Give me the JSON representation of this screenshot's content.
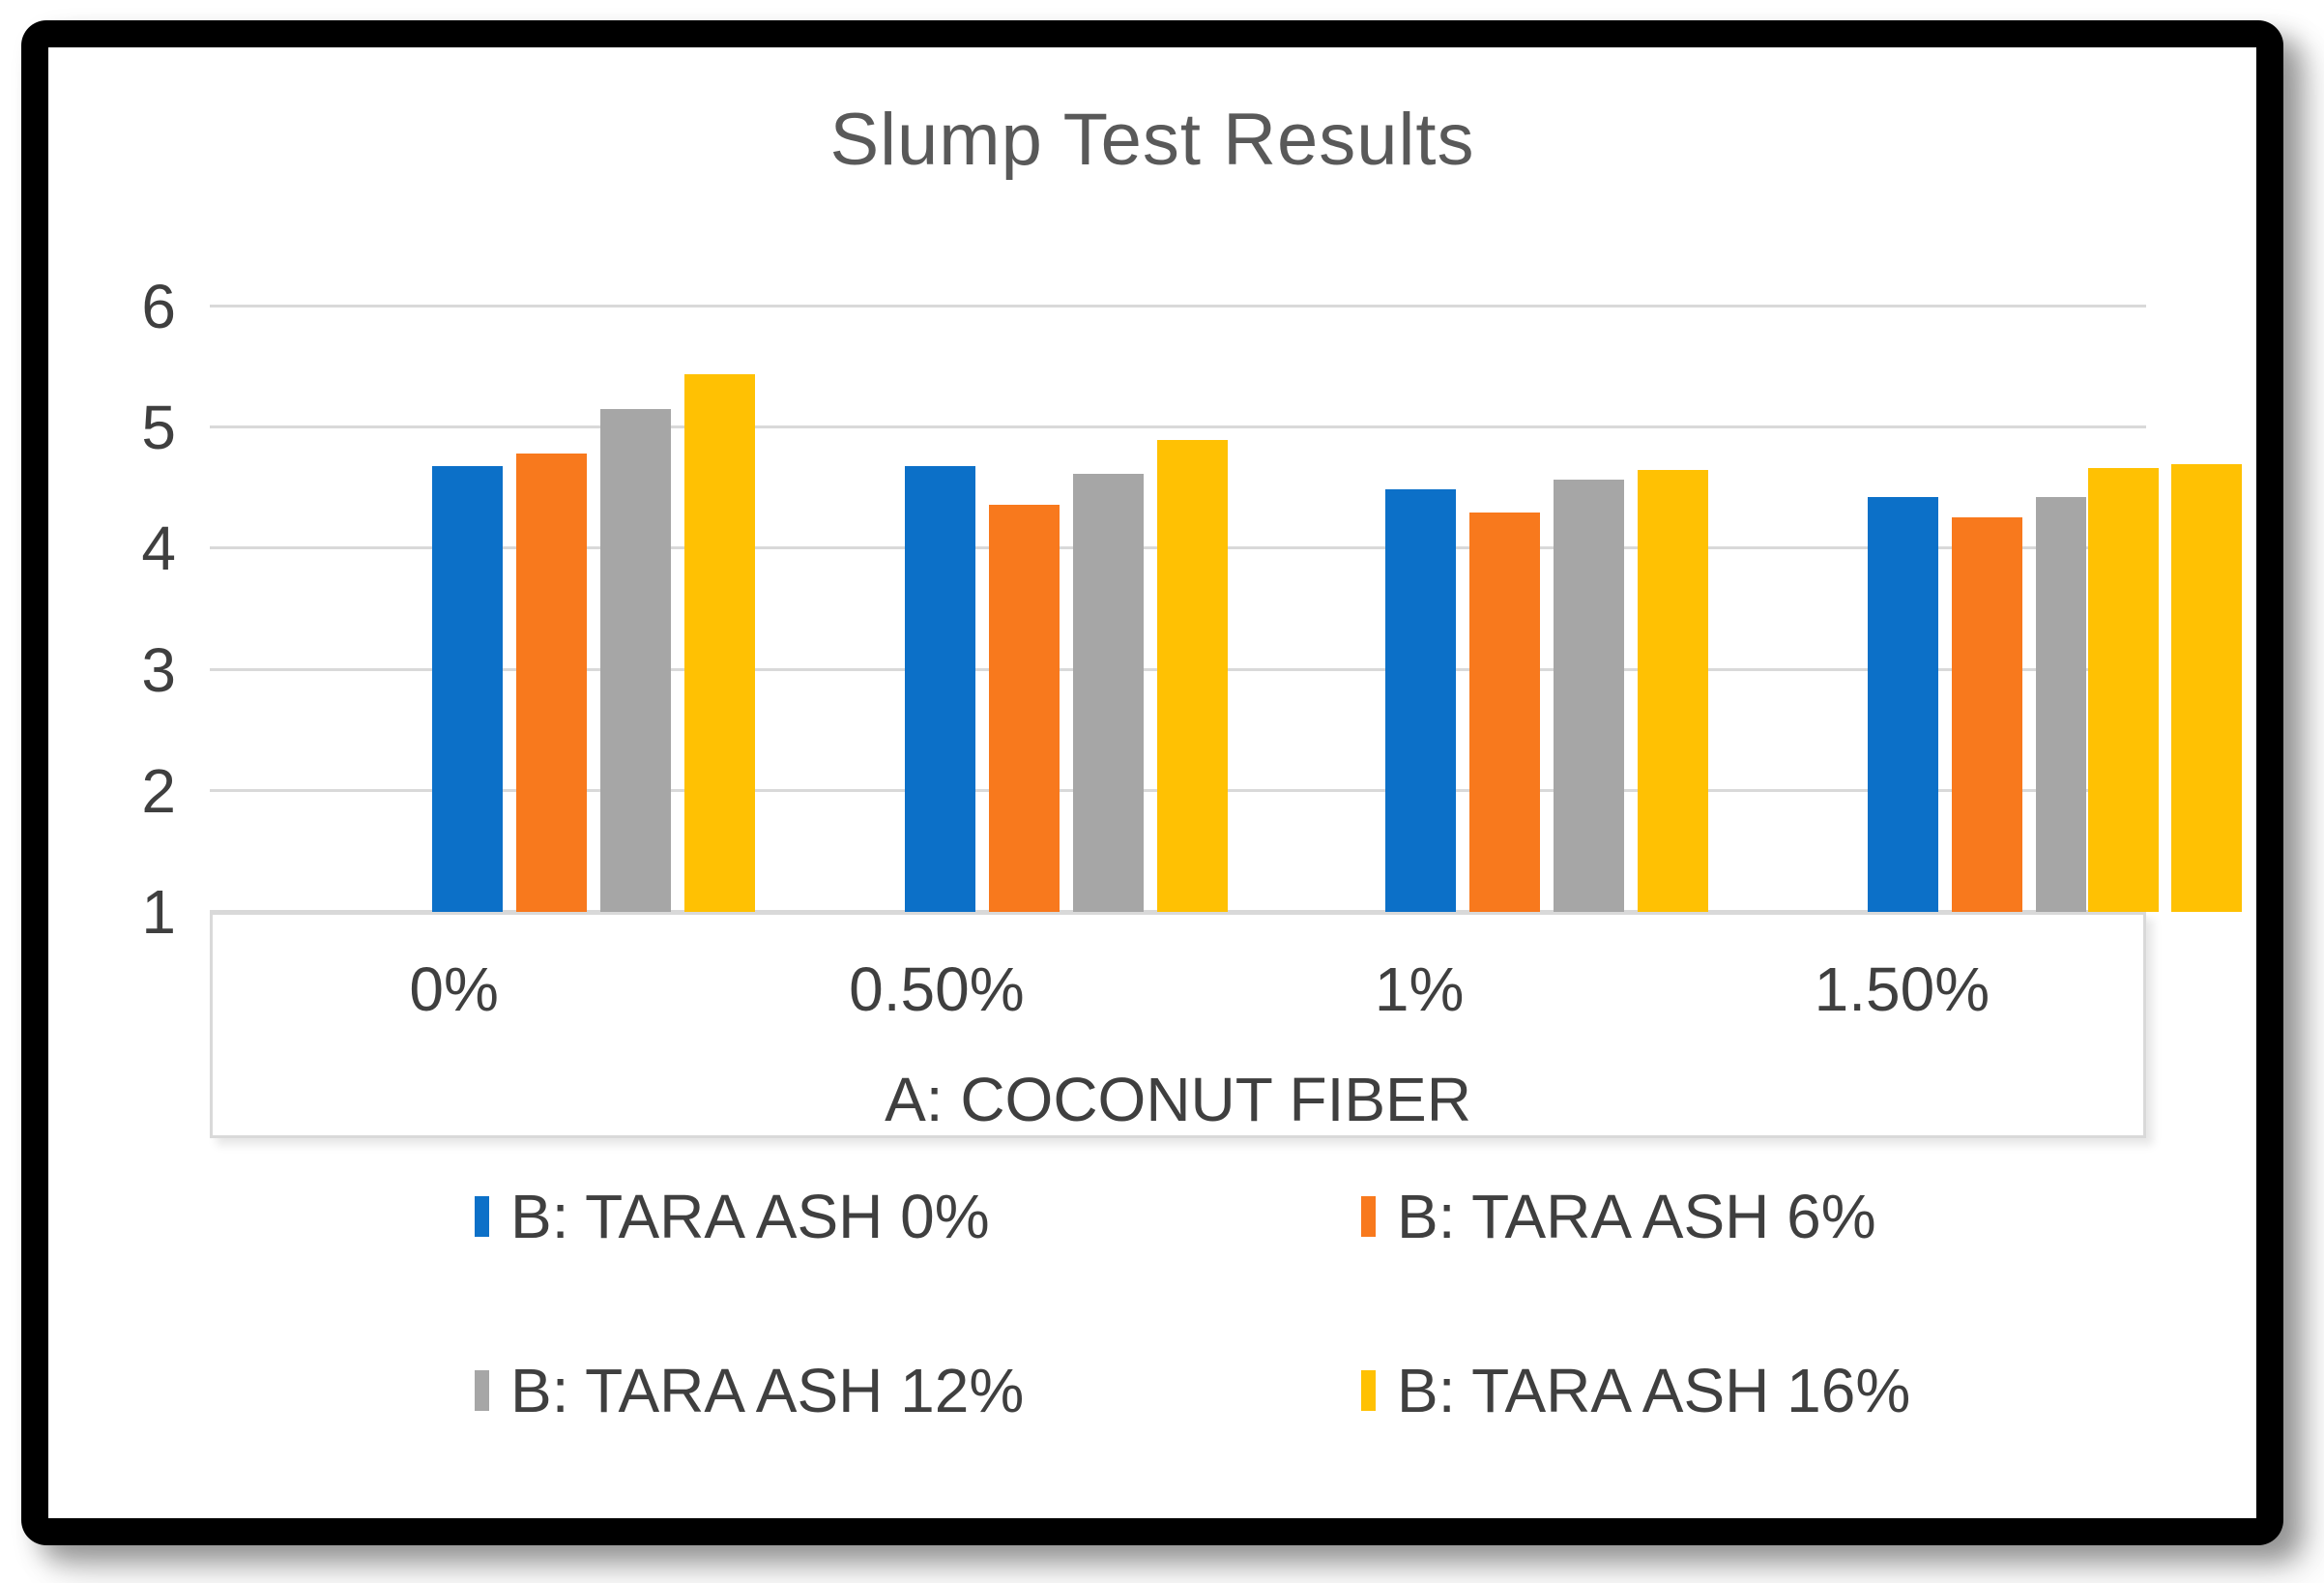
{
  "title": "Slump Test Results",
  "chart_data": {
    "type": "bar",
    "title": "Slump Test Results",
    "xlabel": "A: COCONUT FIBER",
    "ylabel": "",
    "ylim": [
      1,
      6
    ],
    "yticks": [
      1,
      2,
      3,
      4,
      5,
      6
    ],
    "grid": "horizontal",
    "legend_position": "bottom",
    "categories": [
      "0%",
      "0.50%",
      "1%",
      "1.50%"
    ],
    "series": [
      {
        "name": "B: TARA ASH 0%",
        "color": "#0C70C8",
        "in_legend": true,
        "values": [
          4.68,
          4.68,
          4.49,
          4.43
        ]
      },
      {
        "name": "B: TARA ASH 6%",
        "color": "#F8791D",
        "in_legend": true,
        "values": [
          4.79,
          4.36,
          4.3,
          4.26
        ]
      },
      {
        "name": "B: TARA ASH 12%",
        "color": "#A6A6A6",
        "in_legend": true,
        "values": [
          5.15,
          4.62,
          4.57,
          4.43
        ]
      },
      {
        "name": "B: TARA ASH 16%",
        "color": "#FFC103",
        "in_legend": true,
        "values": [
          5.44,
          4.9,
          4.65,
          4.67
        ]
      },
      {
        "name": "B: TARA ASH 16%",
        "color": "#FFC103",
        "in_legend": false,
        "values": [
          null,
          null,
          null,
          4.7
        ]
      }
    ]
  },
  "colors": {
    "accent_blue": "#0C70C8",
    "accent_orange": "#F8791D",
    "accent_gray": "#A6A6A6",
    "accent_yellow": "#FFC103",
    "title_text": "#595959",
    "axis_text": "#3F3F3F",
    "gridline": "#D9D9D9",
    "frame": "#000000"
  }
}
